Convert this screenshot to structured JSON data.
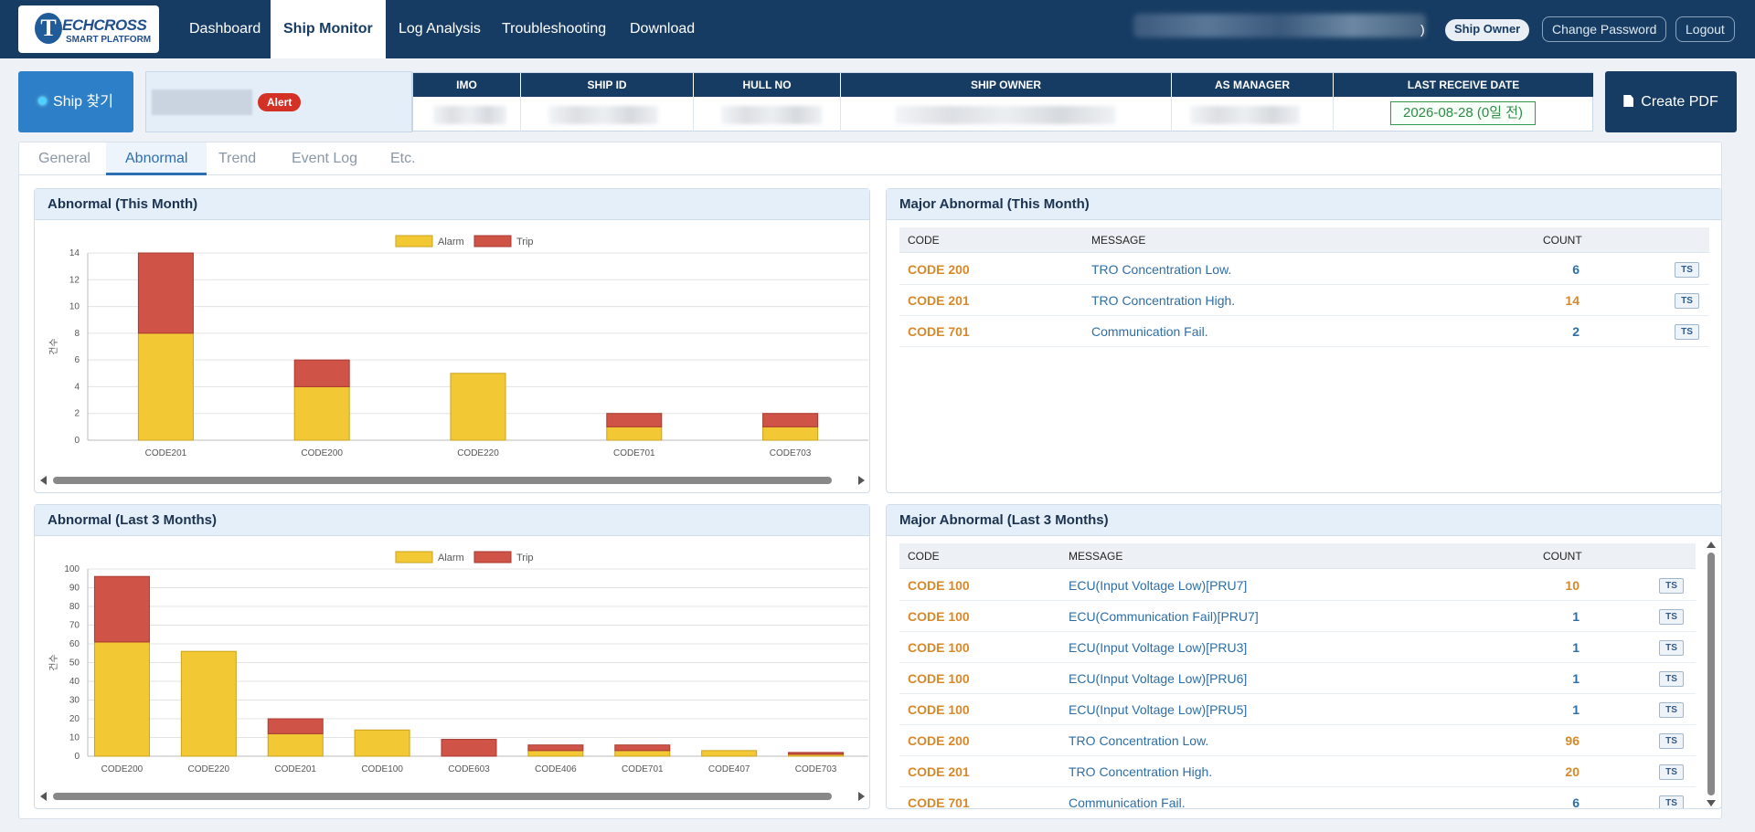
{
  "brand": {
    "logo_letter": "T",
    "logo_line1": "ECHCROSS",
    "logo_line2": "SMART PLATFORM"
  },
  "nav": {
    "items": [
      {
        "label": "Dashboard",
        "active": false
      },
      {
        "label": "Ship Monitor",
        "active": true
      },
      {
        "label": "Log Analysis",
        "active": false
      },
      {
        "label": "Troubleshooting",
        "active": false
      },
      {
        "label": "Download",
        "active": false
      }
    ],
    "user_suffix": ")",
    "role_badge": "Ship Owner",
    "change_password": "Change Password",
    "logout": "Logout"
  },
  "shipbar": {
    "find_button": "Ship 찾기",
    "alert_badge": "Alert",
    "columns": [
      "IMO",
      "SHIP ID",
      "HULL NO",
      "SHIP OWNER",
      "AS MANAGER",
      "LAST RECEIVE DATE"
    ],
    "last_receive_date": "2026-08-28 (0일 전)",
    "pdf_button": "Create PDF"
  },
  "tabs": [
    {
      "label": "General",
      "active": false
    },
    {
      "label": "Abnormal",
      "active": true
    },
    {
      "label": "Trend",
      "active": false
    },
    {
      "label": "Event Log",
      "active": false
    },
    {
      "label": "Etc.",
      "active": false
    }
  ],
  "panels": {
    "chart_month_title": "Abnormal (This Month)",
    "chart_3m_title": "Abnormal (Last 3 Months)",
    "major_month_title": "Major Abnormal (This Month)",
    "major_3m_title": "Major Abnormal (Last 3 Months)"
  },
  "colors": {
    "alarm": "#f2c935",
    "trip": "#cf5347",
    "nav": "#173c63",
    "accent": "#2d7fc7"
  },
  "chart_data": [
    {
      "type": "bar",
      "stacked": true,
      "title": "",
      "ylabel": "건수",
      "categories": [
        "CODE201",
        "CODE200",
        "CODE220",
        "CODE701",
        "CODE703"
      ],
      "series": [
        {
          "name": "Alarm",
          "values": [
            8,
            4,
            5,
            1,
            1
          ]
        },
        {
          "name": "Trip",
          "values": [
            6,
            2,
            0,
            1,
            1
          ]
        }
      ],
      "ylim": [
        0,
        14
      ],
      "yticks": [
        0,
        2,
        4,
        6,
        8,
        10,
        12,
        14
      ],
      "grid": true,
      "legend": "top"
    },
    {
      "type": "bar",
      "stacked": true,
      "title": "",
      "ylabel": "건수",
      "categories": [
        "CODE200",
        "CODE220",
        "CODE201",
        "CODE100",
        "CODE603",
        "CODE406",
        "CODE701",
        "CODE407",
        "CODE703"
      ],
      "series": [
        {
          "name": "Alarm",
          "values": [
            61,
            56,
            12,
            14,
            0,
            3,
            3,
            3,
            1
          ]
        },
        {
          "name": "Trip",
          "values": [
            35,
            0,
            8,
            0,
            9,
            3,
            3,
            0,
            1
          ]
        }
      ],
      "ylim": [
        0,
        100
      ],
      "yticks": [
        0,
        10,
        20,
        30,
        40,
        50,
        60,
        70,
        80,
        90,
        100
      ],
      "grid": true,
      "legend": "top"
    }
  ],
  "major_month": {
    "headers": {
      "code": "CODE",
      "message": "MESSAGE",
      "count": "COUNT"
    },
    "rows": [
      {
        "code": "CODE 200",
        "message": "TRO Concentration Low.",
        "count": "6",
        "count_color": "blue",
        "ts": "TS"
      },
      {
        "code": "CODE 201",
        "message": "TRO Concentration High.",
        "count": "14",
        "count_color": "orange",
        "ts": "TS"
      },
      {
        "code": "CODE 701",
        "message": "Communication Fail.",
        "count": "2",
        "count_color": "blue",
        "ts": "TS"
      }
    ]
  },
  "major_3m": {
    "headers": {
      "code": "CODE",
      "message": "MESSAGE",
      "count": "COUNT"
    },
    "rows": [
      {
        "code": "CODE 100",
        "message": "ECU(Input Voltage Low)[PRU7]",
        "count": "10",
        "count_color": "orange",
        "ts": "TS"
      },
      {
        "code": "CODE 100",
        "message": "ECU(Communication Fail)[PRU7]",
        "count": "1",
        "count_color": "blue",
        "ts": "TS"
      },
      {
        "code": "CODE 100",
        "message": "ECU(Input Voltage Low)[PRU3]",
        "count": "1",
        "count_color": "blue",
        "ts": "TS"
      },
      {
        "code": "CODE 100",
        "message": "ECU(Input Voltage Low)[PRU6]",
        "count": "1",
        "count_color": "blue",
        "ts": "TS"
      },
      {
        "code": "CODE 100",
        "message": "ECU(Input Voltage Low)[PRU5]",
        "count": "1",
        "count_color": "blue",
        "ts": "TS"
      },
      {
        "code": "CODE 200",
        "message": "TRO Concentration Low.",
        "count": "96",
        "count_color": "orange",
        "ts": "TS"
      },
      {
        "code": "CODE 201",
        "message": "TRO Concentration High.",
        "count": "20",
        "count_color": "orange",
        "ts": "TS"
      },
      {
        "code": "CODE 701",
        "message": "Communication Fail.",
        "count": "6",
        "count_color": "blue",
        "ts": "TS"
      }
    ]
  }
}
